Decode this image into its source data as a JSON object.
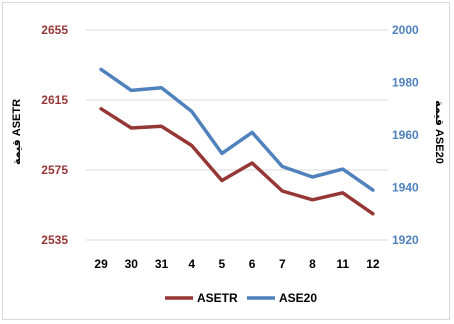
{
  "chart_data": {
    "type": "line",
    "categories": [
      "29",
      "30",
      "31",
      "4",
      "5",
      "6",
      "7",
      "8",
      "11",
      "12"
    ],
    "series": [
      {
        "name": "ASETR",
        "axis": "left",
        "color": "#953735",
        "values": [
          2610,
          2599,
          2600,
          2589,
          2569,
          2579,
          2563,
          2558,
          2562,
          2550
        ]
      },
      {
        "name": "ASE20",
        "axis": "right",
        "color": "#4f81bd",
        "values": [
          1985,
          1977,
          1978,
          1969,
          1953,
          1961,
          1948,
          1944,
          1947,
          1939
        ]
      }
    ],
    "y_left": {
      "label": "قيمة ASETR",
      "ticks": [
        2535,
        2575,
        2615,
        2655
      ],
      "tick_labels": [
        "2535",
        "2575",
        "2615",
        "2655"
      ],
      "ylim": [
        2535,
        2655
      ],
      "color": "#953735"
    },
    "y_right": {
      "label": "قيمة ASE20",
      "ticks": [
        1920,
        1940,
        1960,
        1980,
        2000
      ],
      "tick_labels": [
        "1920",
        "1940",
        "1960",
        "1980",
        "2000"
      ],
      "ylim": [
        1920,
        2000
      ],
      "color": "#4f81bd"
    },
    "grid": true,
    "gridColor": "#d9d9d9",
    "legend": "bottom"
  }
}
